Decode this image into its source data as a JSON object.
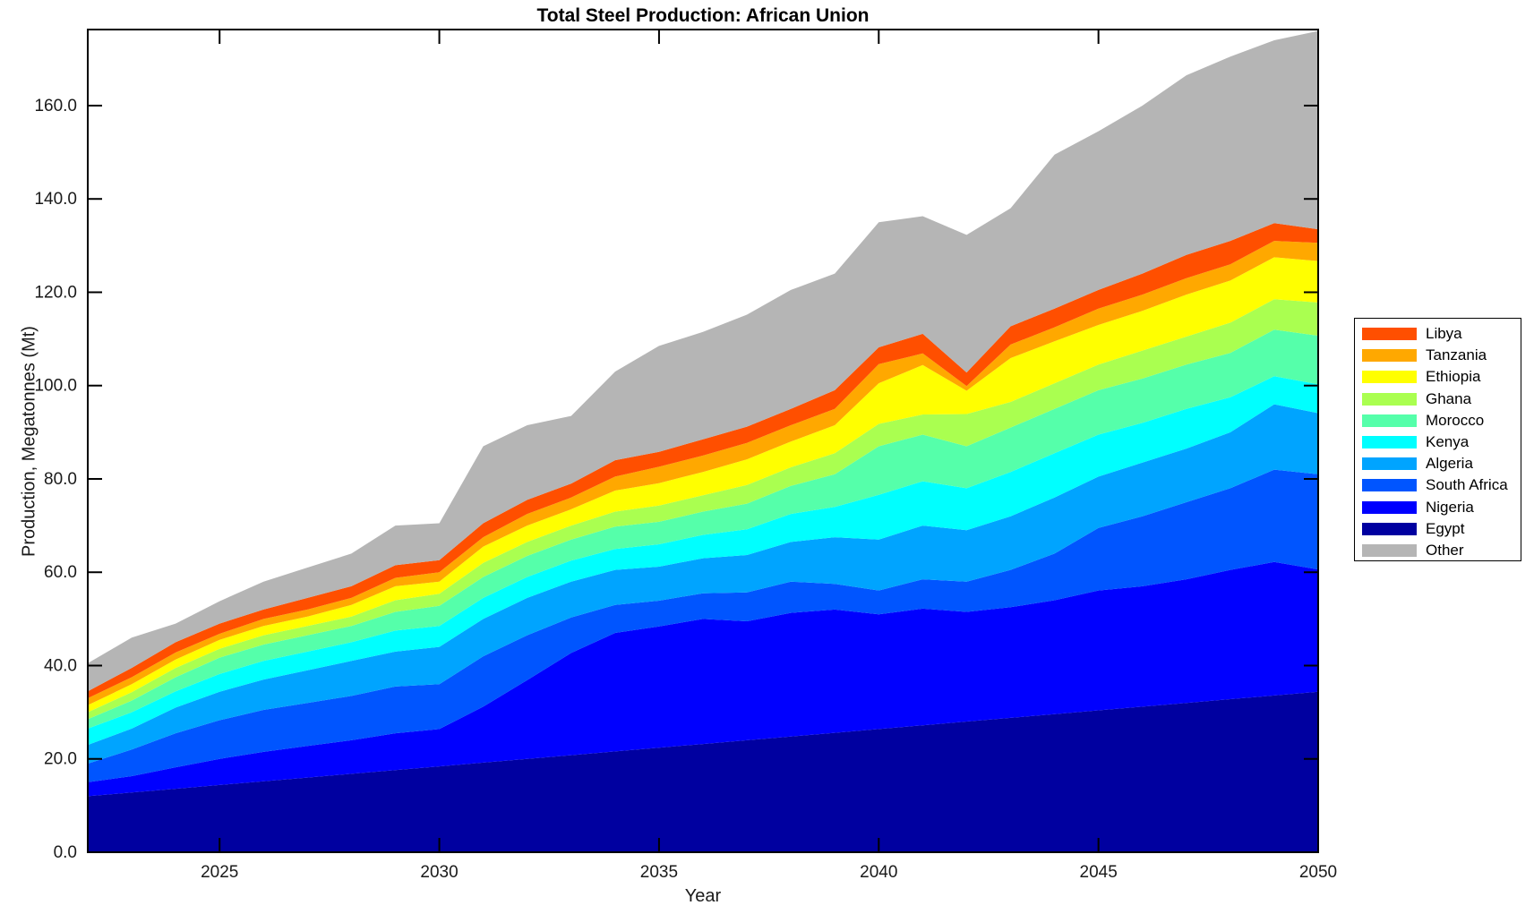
{
  "figure": {
    "title": "Total Steel Production: African Union",
    "xlabel": "Year",
    "ylabel": "Production, Megatonnes (Mt)"
  },
  "chart_data": {
    "type": "area",
    "stacked": true,
    "title": "Total Steel Production: African Union",
    "xlabel": "Year",
    "ylabel": "Production, Megatonnes (Mt)",
    "grid": false,
    "legend_position": "right-outside",
    "xlim": [
      2022,
      2050
    ],
    "ylim": [
      0,
      176.3
    ],
    "x_ticks": {
      "values": [
        2025,
        2030,
        2035,
        2040,
        2045,
        2050
      ],
      "labels": [
        "2025",
        "2030",
        "2035",
        "2040",
        "2045",
        "2050"
      ]
    },
    "y_ticks": {
      "values": [
        0,
        20,
        40,
        60,
        80,
        100,
        120,
        140,
        160
      ],
      "labels": [
        "0.0",
        "20.0",
        "40.0",
        "60.0",
        "80.0",
        "100.0",
        "120.0",
        "140.0",
        "160.0"
      ]
    },
    "x": [
      2022,
      2023,
      2024,
      2025,
      2026,
      2027,
      2028,
      2029,
      2030,
      2031,
      2032,
      2033,
      2034,
      2035,
      2036,
      2037,
      2038,
      2039,
      2040,
      2041,
      2042,
      2043,
      2044,
      2045,
      2046,
      2047,
      2048,
      2049,
      2050
    ],
    "series": [
      {
        "name": "Egypt",
        "color": "#0000A0",
        "values": [
          12.0,
          12.8,
          13.6,
          14.4,
          15.2,
          16.0,
          16.8,
          17.6,
          18.4,
          19.2,
          20.0,
          20.8,
          21.6,
          22.4,
          23.2,
          24.0,
          24.8,
          25.6,
          26.4,
          27.2,
          28.0,
          28.8,
          29.6,
          30.4,
          31.2,
          32.0,
          32.8,
          33.6,
          34.4
        ]
      },
      {
        "name": "Nigeria",
        "color": "#0000FF",
        "values": [
          3.0,
          3.5,
          4.6,
          5.6,
          6.3,
          6.8,
          7.2,
          7.9,
          8.0,
          12.0,
          16.9,
          21.9,
          25.4,
          26.0,
          26.8,
          25.5,
          26.5,
          26.4,
          24.6,
          25.0,
          23.5,
          23.7,
          24.4,
          25.7,
          25.8,
          26.5,
          27.7,
          28.6,
          26.2
        ]
      },
      {
        "name": "South Africa",
        "color": "#0055FF",
        "values": [
          4.0,
          5.7,
          7.3,
          8.3,
          9.0,
          9.2,
          9.5,
          10.0,
          9.6,
          10.8,
          9.6,
          7.6,
          6.0,
          5.5,
          5.5,
          6.2,
          6.7,
          5.5,
          5.1,
          6.3,
          6.5,
          8.0,
          10.0,
          13.4,
          15.0,
          16.5,
          17.5,
          19.8,
          20.4
        ]
      },
      {
        "name": "Algeria",
        "color": "#00A4FF",
        "values": [
          4.0,
          4.5,
          5.5,
          6.1,
          6.5,
          7.0,
          7.5,
          7.5,
          8.0,
          8.0,
          8.0,
          7.7,
          7.5,
          7.3,
          7.5,
          8.0,
          8.5,
          10.0,
          10.9,
          11.5,
          11.0,
          11.5,
          12.0,
          11.0,
          11.5,
          11.5,
          12.0,
          14.0,
          13.1
        ]
      },
      {
        "name": "Kenya",
        "color": "#00FFFF",
        "values": [
          3.5,
          3.5,
          3.5,
          3.8,
          4.0,
          4.0,
          4.0,
          4.5,
          4.5,
          4.5,
          4.5,
          4.5,
          4.5,
          4.8,
          5.0,
          5.5,
          6.0,
          6.5,
          9.6,
          9.5,
          9.0,
          9.5,
          9.5,
          9.0,
          8.5,
          8.5,
          7.5,
          6.0,
          6.2
        ]
      },
      {
        "name": "Morocco",
        "color": "#55FFAA",
        "values": [
          2.0,
          2.5,
          3.0,
          3.5,
          3.5,
          3.5,
          3.5,
          4.0,
          4.3,
          4.5,
          4.5,
          4.5,
          4.8,
          4.8,
          5.0,
          5.5,
          6.0,
          7.0,
          10.4,
          10.0,
          9.0,
          9.5,
          9.5,
          9.5,
          9.5,
          9.5,
          9.5,
          10.0,
          10.4
        ]
      },
      {
        "name": "Ghana",
        "color": "#AAFF50",
        "values": [
          1.5,
          1.8,
          2.0,
          1.9,
          2.0,
          2.0,
          2.0,
          2.5,
          2.6,
          3.0,
          3.0,
          3.0,
          3.2,
          3.5,
          3.5,
          4.0,
          4.0,
          4.5,
          4.8,
          4.3,
          6.9,
          5.5,
          5.5,
          5.5,
          6.0,
          6.0,
          6.5,
          6.5,
          7.1
        ]
      },
      {
        "name": "Ethiopia",
        "color": "#FFFF00",
        "values": [
          1.5,
          1.7,
          1.8,
          1.9,
          2.0,
          2.0,
          2.5,
          3.0,
          2.6,
          3.5,
          3.5,
          3.5,
          4.5,
          4.8,
          5.0,
          5.5,
          5.5,
          6.0,
          8.7,
          10.6,
          5.0,
          9.4,
          9.0,
          8.5,
          8.5,
          9.0,
          9.0,
          9.0,
          8.9
        ]
      },
      {
        "name": "Tanzania",
        "color": "#FFA800",
        "values": [
          1.5,
          1.5,
          1.5,
          1.3,
          1.5,
          1.5,
          1.5,
          1.8,
          2.0,
          2.0,
          2.5,
          2.5,
          3.0,
          3.5,
          3.5,
          3.5,
          3.5,
          3.5,
          4.1,
          2.5,
          1.0,
          2.9,
          3.0,
          3.5,
          3.5,
          3.5,
          3.5,
          3.5,
          3.9
        ]
      },
      {
        "name": "Libya",
        "color": "#FF4F00",
        "values": [
          1.5,
          2.0,
          2.2,
          2.2,
          2.0,
          2.5,
          2.5,
          2.7,
          2.6,
          3.0,
          3.0,
          3.0,
          3.5,
          3.2,
          3.5,
          3.5,
          3.5,
          4.0,
          3.6,
          4.2,
          2.9,
          3.9,
          4.0,
          4.0,
          4.5,
          5.0,
          5.0,
          3.8,
          2.9
        ]
      },
      {
        "name": "Other",
        "color": "#B5B5B5",
        "values": [
          6.0,
          6.5,
          4.0,
          4.8,
          6.0,
          6.5,
          7.0,
          8.5,
          7.9,
          16.5,
          16.0,
          14.5,
          19.0,
          22.7,
          23.0,
          24.0,
          25.5,
          25.0,
          26.8,
          25.2,
          29.5,
          25.3,
          33.0,
          34.0,
          36.0,
          38.5,
          39.5,
          39.2,
          42.5
        ]
      }
    ],
    "legend": [
      {
        "label": "Libya",
        "color": "#FF4F00"
      },
      {
        "label": "Tanzania",
        "color": "#FFA800"
      },
      {
        "label": "Ethiopia",
        "color": "#FFFF00"
      },
      {
        "label": "Ghana",
        "color": "#AAFF50"
      },
      {
        "label": "Morocco",
        "color": "#55FFAA"
      },
      {
        "label": "Kenya",
        "color": "#00FFFF"
      },
      {
        "label": "Algeria",
        "color": "#00A4FF"
      },
      {
        "label": "South Africa",
        "color": "#0055FF"
      },
      {
        "label": "Nigeria",
        "color": "#0000FF"
      },
      {
        "label": "Egypt",
        "color": "#0000A0"
      },
      {
        "label": "Other",
        "color": "#B5B5B5"
      }
    ],
    "axis_color": "#000000",
    "tick_label_color": "#1a1a1a"
  }
}
